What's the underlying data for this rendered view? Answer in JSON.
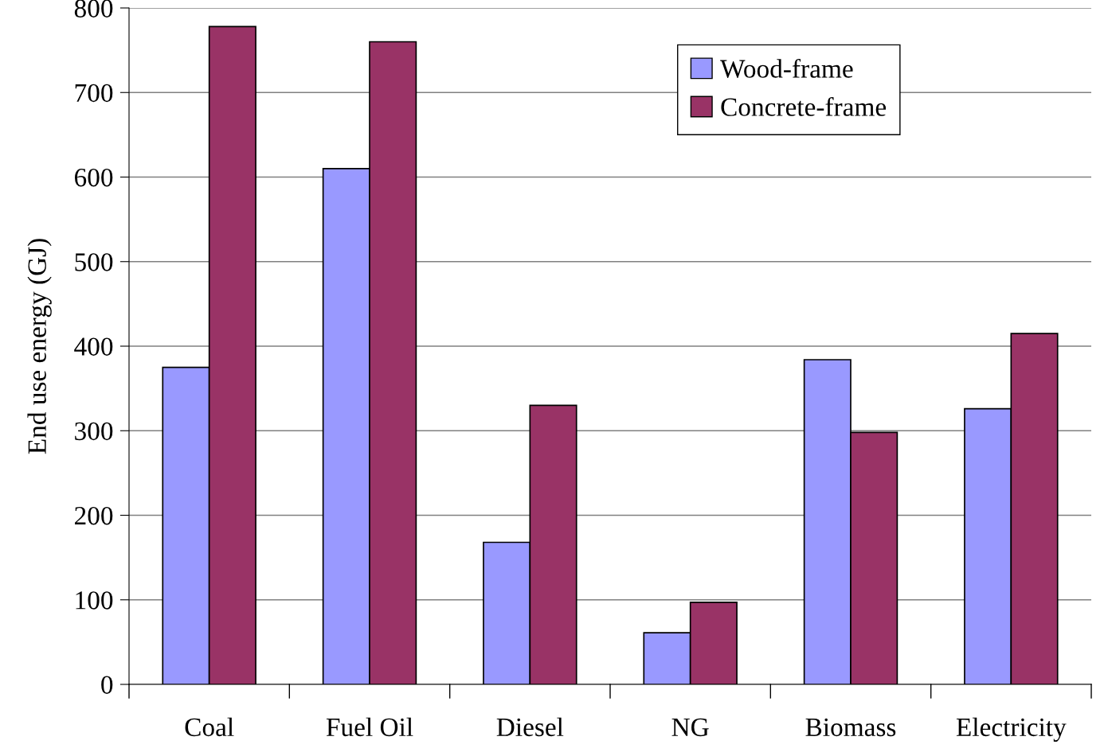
{
  "chart_data": {
    "type": "bar",
    "ylabel": "End use energy (GJ)",
    "categories": [
      "Coal",
      "Fuel Oil",
      "Diesel",
      "NG",
      "Biomass",
      "Electricity"
    ],
    "series": [
      {
        "name": "Wood-frame",
        "color": "#9999ff",
        "values": [
          375,
          610,
          168,
          61,
          384,
          326
        ]
      },
      {
        "name": "Concrete-frame",
        "color": "#993366",
        "values": [
          778,
          760,
          330,
          97,
          298,
          415
        ]
      }
    ],
    "ylim": [
      0,
      800
    ],
    "yticks": [
      0,
      100,
      200,
      300,
      400,
      500,
      600,
      700,
      800
    ],
    "grid": "y",
    "legend": "top right"
  }
}
